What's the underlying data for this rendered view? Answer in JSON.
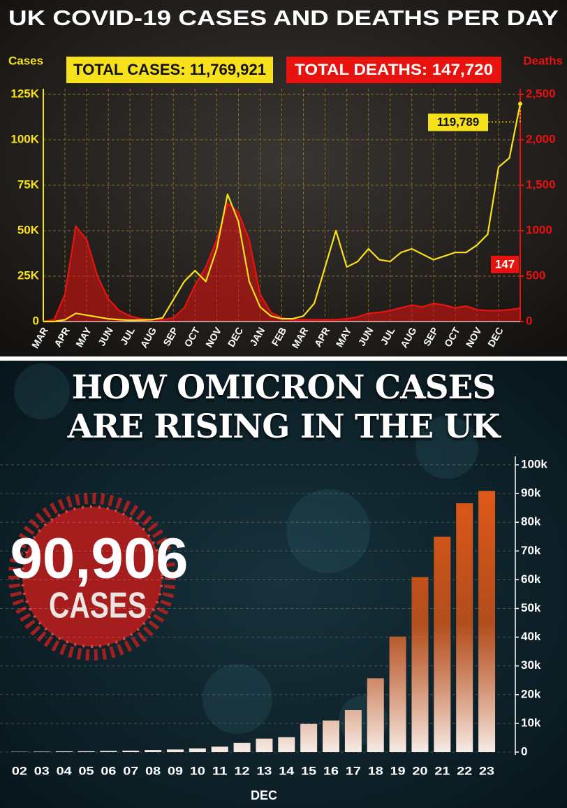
{
  "chart_data": [
    {
      "type": "line",
      "title": "UK COVID-19 CASES AND DEATHS PER DAY",
      "annotations": [
        "TOTAL CASES: 11,769,921",
        "TOTAL DEATHS: 147,720"
      ],
      "categories": [
        "MAR",
        null,
        "APR",
        null,
        "MAY",
        null,
        "JUN",
        null,
        "JUL",
        null,
        "AUG",
        null,
        "SEP",
        null,
        "OCT",
        null,
        "NOV",
        null,
        "DEC",
        null,
        "JAN",
        null,
        "FEB",
        null,
        "MAR",
        null,
        "APR",
        null,
        "MAY",
        null,
        "JUN",
        null,
        "JUL",
        null,
        "AUG",
        null,
        "SEP",
        null,
        "OCT",
        null,
        "NOV",
        null,
        "DEC",
        null,
        null
      ],
      "series": [
        {
          "name": "Cases",
          "color": "#f7e11b",
          "values": [
            0,
            0,
            1000,
            4500,
            3500,
            2500,
            1500,
            1000,
            700,
            800,
            1000,
            2000,
            12000,
            22000,
            28000,
            22000,
            40000,
            70000,
            55000,
            22000,
            8000,
            3000,
            1500,
            1500,
            3000,
            10000,
            30000,
            50000,
            30000,
            33000,
            40000,
            34000,
            33000,
            38000,
            40000,
            37000,
            34000,
            36000,
            38000,
            38000,
            42000,
            48000,
            85000,
            90000,
            119789
          ],
          "value_labels": [
            null,
            null,
            null,
            null,
            null,
            null,
            null,
            null,
            null,
            null,
            null,
            null,
            null,
            null,
            null,
            null,
            null,
            null,
            null,
            null,
            null,
            null,
            null,
            null,
            null,
            null,
            null,
            null,
            null,
            null,
            null,
            null,
            null,
            null,
            null,
            null,
            null,
            null,
            null,
            null,
            null,
            null,
            null,
            null,
            "119,789"
          ]
        },
        {
          "name": "Deaths",
          "color": "#e8130f",
          "axis": "y2",
          "area": true,
          "values": [
            0,
            20,
            300,
            1050,
            900,
            500,
            250,
            120,
            60,
            30,
            20,
            20,
            40,
            150,
            400,
            600,
            900,
            1300,
            1200,
            900,
            300,
            100,
            40,
            20,
            20,
            20,
            20,
            20,
            30,
            50,
            90,
            100,
            120,
            150,
            180,
            160,
            200,
            180,
            150,
            170,
            130,
            120,
            120,
            130,
            147
          ]
        }
      ],
      "ylim": [
        0,
        125000
      ],
      "yticks": [
        0,
        {
          "value": 25000,
          "label": "25K"
        },
        {
          "value": 50000,
          "label": "50K"
        },
        {
          "value": 75000,
          "label": "75K"
        },
        {
          "value": 100000,
          "label": "100K"
        },
        {
          "value": 125000,
          "label": "125K"
        }
      ],
      "y2lim": [
        0,
        2500
      ],
      "y2ticks": [
        0,
        500,
        1000,
        {
          "value": 1500,
          "label": "1,500"
        },
        {
          "value": 2000,
          "label": "2,000"
        },
        {
          "value": 2500,
          "label": "2,500"
        }
      ],
      "grid": true
    },
    {
      "type": "bar",
      "title": "HOW OMICRON CASES ARE RISING IN THE UK",
      "highlight": "90,906",
      "highlight_caption": "CASES",
      "xlabel": "DEC",
      "categories": [
        "02",
        "03",
        "04",
        "05",
        "06",
        "07",
        "08",
        "09",
        "10",
        "11",
        "12",
        "13",
        "14",
        "15",
        "16",
        "17",
        "18",
        "19",
        "20",
        "21",
        "22",
        "23"
      ],
      "values": [
        100,
        150,
        250,
        300,
        400,
        500,
        700,
        900,
        1300,
        1900,
        3200,
        4700,
        5200,
        9800,
        11000,
        14600,
        25700,
        40200,
        60900,
        75000,
        86600,
        90906
      ],
      "color": "#e85a17",
      "ylim": [
        0,
        100000
      ],
      "yticks": [
        0,
        {
          "value": 10000,
          "label": "10k"
        },
        {
          "value": 20000,
          "label": "20k"
        },
        {
          "value": 30000,
          "label": "30k"
        },
        {
          "value": 40000,
          "label": "40k"
        },
        {
          "value": 50000,
          "label": "50k"
        },
        {
          "value": 60000,
          "label": "60k"
        },
        {
          "value": 70000,
          "label": "70k"
        },
        {
          "value": 80000,
          "label": "80k"
        },
        {
          "value": 90000,
          "label": "90k"
        },
        {
          "value": 100000,
          "label": "100k"
        }
      ],
      "grid": true
    }
  ]
}
